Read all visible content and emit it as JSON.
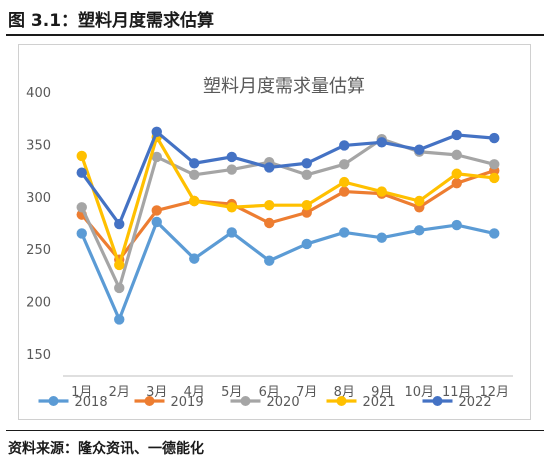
{
  "figure": {
    "caption": "图 3.1：塑料月度需求估算",
    "source": "资料来源：隆众资讯、一德能化"
  },
  "chart_data": {
    "type": "line",
    "title": "塑料月度需求量估算",
    "xlabel": "",
    "ylabel": "",
    "categories": [
      "1月",
      "2月",
      "3月",
      "4月",
      "5月",
      "6月",
      "7月",
      "8月",
      "9月",
      "10月",
      "11月",
      "12月"
    ],
    "ylim": [
      150,
      400
    ],
    "yticks": [
      150,
      200,
      250,
      300,
      350,
      400
    ],
    "grid": false,
    "legend_position": "bottom",
    "series": [
      {
        "name": "2018",
        "color": "#5B9BD5",
        "values": [
          265,
          183,
          276,
          241,
          266,
          239,
          255,
          266,
          261,
          268,
          273,
          265
        ]
      },
      {
        "name": "2019",
        "color": "#ED7D31",
        "values": [
          283,
          240,
          287,
          296,
          293,
          275,
          285,
          305,
          303,
          290,
          313,
          325
        ]
      },
      {
        "name": "2020",
        "color": "#A5A5A5",
        "values": [
          290,
          213,
          338,
          321,
          326,
          333,
          321,
          331,
          355,
          343,
          340,
          331
        ]
      },
      {
        "name": "2021",
        "color": "#FFC000",
        "values": [
          339,
          235,
          357,
          296,
          290,
          292,
          292,
          314,
          305,
          296,
          322,
          318
        ]
      },
      {
        "name": "2022",
        "color": "#4472C4",
        "values": [
          323,
          274,
          362,
          332,
          338,
          328,
          332,
          349,
          352,
          345,
          359,
          356
        ]
      }
    ]
  }
}
